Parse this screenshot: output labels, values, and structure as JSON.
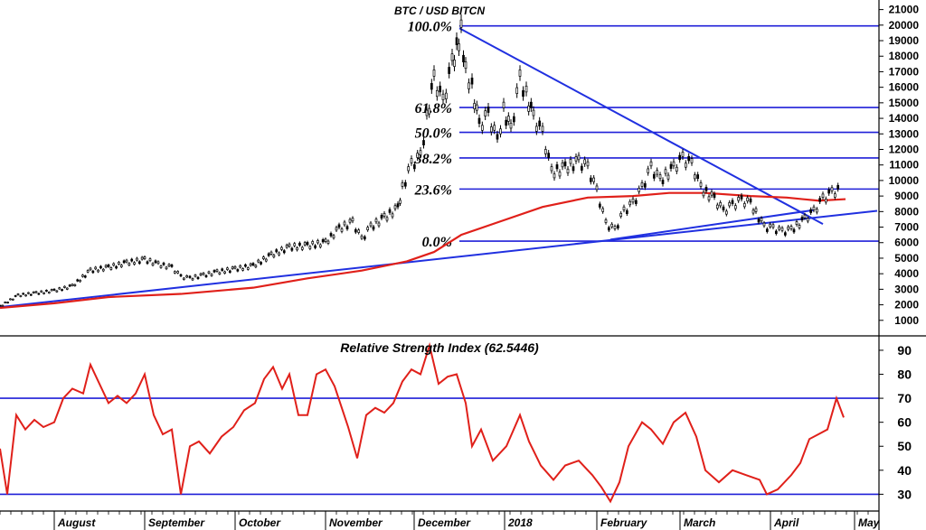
{
  "chart_data": [
    {
      "type": "candlestick",
      "title": "BTC / USD BITCN",
      "y_ticks": [
        1000,
        2000,
        3000,
        4000,
        5000,
        6000,
        7000,
        8000,
        9000,
        10000,
        11000,
        12000,
        13000,
        14000,
        15000,
        16000,
        17000,
        18000,
        19000,
        20000,
        21000
      ],
      "ylim": [
        0,
        21500
      ],
      "x_labels": [
        "August",
        "September",
        "October",
        "November",
        "December",
        "2018",
        "February",
        "March",
        "April",
        "May"
      ],
      "fib_levels": [
        {
          "label": "100.0%",
          "value": 19950
        },
        {
          "label": "61.8%",
          "value": 14700
        },
        {
          "label": "50.0%",
          "value": 13100
        },
        {
          "label": "38.2%",
          "value": 11450
        },
        {
          "label": "23.6%",
          "value": 9450
        },
        {
          "label": "0.0%",
          "value": 6100
        }
      ],
      "price_series": [
        [
          0,
          1900
        ],
        [
          20,
          2600
        ],
        [
          40,
          2750
        ],
        [
          60,
          2900
        ],
        [
          80,
          3200
        ],
        [
          100,
          4200
        ],
        [
          120,
          4400
        ],
        [
          140,
          4700
        ],
        [
          160,
          4900
        ],
        [
          175,
          4600
        ],
        [
          190,
          4400
        ],
        [
          200,
          3800
        ],
        [
          210,
          3700
        ],
        [
          225,
          3900
        ],
        [
          240,
          4100
        ],
        [
          260,
          4300
        ],
        [
          280,
          4500
        ],
        [
          300,
          5200
        ],
        [
          320,
          5700
        ],
        [
          340,
          5800
        ],
        [
          360,
          6000
        ],
        [
          375,
          6900
        ],
        [
          390,
          7300
        ],
        [
          400,
          6200
        ],
        [
          410,
          7000
        ],
        [
          425,
          7600
        ],
        [
          440,
          8200
        ],
        [
          445,
          9500
        ],
        [
          455,
          11000
        ],
        [
          465,
          11500
        ],
        [
          472,
          14000
        ],
        [
          480,
          16500
        ],
        [
          490,
          15000
        ],
        [
          500,
          17500
        ],
        [
          505,
          18500
        ],
        [
          510,
          19600
        ],
        [
          515,
          17000
        ],
        [
          522,
          16000
        ],
        [
          530,
          13500
        ],
        [
          540,
          14200
        ],
        [
          550,
          12500
        ],
        [
          557,
          14500
        ],
        [
          565,
          13200
        ],
        [
          575,
          16500
        ],
        [
          582,
          15500
        ],
        [
          590,
          14000
        ],
        [
          600,
          13000
        ],
        [
          610,
          10500
        ],
        [
          625,
          10800
        ],
        [
          640,
          11200
        ],
        [
          650,
          10800
        ],
        [
          660,
          9300
        ],
        [
          670,
          7200
        ],
        [
          680,
          6800
        ],
        [
          690,
          8000
        ],
        [
          700,
          8500
        ],
        [
          710,
          9500
        ],
        [
          720,
          10800
        ],
        [
          730,
          10000
        ],
        [
          745,
          10800
        ],
        [
          755,
          11400
        ],
        [
          765,
          11000
        ],
        [
          775,
          9500
        ],
        [
          790,
          8800
        ],
        [
          800,
          8000
        ],
        [
          810,
          8400
        ],
        [
          820,
          8700
        ],
        [
          830,
          8500
        ],
        [
          845,
          7000
        ],
        [
          855,
          6900
        ],
        [
          865,
          6700
        ],
        [
          875,
          6800
        ],
        [
          890,
          7500
        ],
        [
          900,
          8000
        ],
        [
          910,
          8800
        ],
        [
          920,
          9200
        ],
        [
          930,
          9400
        ]
      ],
      "ma_series": [
        [
          0,
          1800
        ],
        [
          60,
          2100
        ],
        [
          120,
          2500
        ],
        [
          200,
          2700
        ],
        [
          280,
          3100
        ],
        [
          340,
          3700
        ],
        [
          400,
          4200
        ],
        [
          450,
          4800
        ],
        [
          480,
          5400
        ],
        [
          510,
          6500
        ],
        [
          550,
          7300
        ],
        [
          600,
          8300
        ],
        [
          650,
          8900
        ],
        [
          700,
          9000
        ],
        [
          740,
          9200
        ],
        [
          780,
          9200
        ],
        [
          830,
          9000
        ],
        [
          870,
          8900
        ],
        [
          905,
          8700
        ],
        [
          935,
          8800
        ]
      ],
      "trend_lines": [
        {
          "name": "lower-support",
          "from": [
            0,
            1850
          ],
          "to": [
            970,
            8050
          ]
        },
        {
          "name": "descending-resistance",
          "from": [
            508,
            19800
          ],
          "to": [
            910,
            7200
          ]
        },
        {
          "name": "sideways-support",
          "from": [
            675,
            6200
          ],
          "to": [
            900,
            8100
          ]
        }
      ]
    },
    {
      "type": "line",
      "title": "Relative Strength Index (62.5446)",
      "y_ticks": [
        30,
        40,
        50,
        60,
        70,
        80,
        90
      ],
      "ylim": [
        23,
        96
      ],
      "levels": [
        70,
        30
      ],
      "series": [
        [
          0,
          49
        ],
        [
          8,
          30
        ],
        [
          18,
          63
        ],
        [
          28,
          57
        ],
        [
          38,
          61
        ],
        [
          48,
          58
        ],
        [
          60,
          60
        ],
        [
          70,
          70
        ],
        [
          80,
          74
        ],
        [
          92,
          72
        ],
        [
          100,
          84
        ],
        [
          110,
          76
        ],
        [
          120,
          68
        ],
        [
          130,
          71
        ],
        [
          140,
          68
        ],
        [
          150,
          72
        ],
        [
          160,
          80
        ],
        [
          170,
          63
        ],
        [
          180,
          55
        ],
        [
          190,
          57
        ],
        [
          200,
          30
        ],
        [
          210,
          50
        ],
        [
          220,
          52
        ],
        [
          232,
          47
        ],
        [
          245,
          54
        ],
        [
          258,
          58
        ],
        [
          270,
          65
        ],
        [
          282,
          68
        ],
        [
          292,
          78
        ],
        [
          302,
          83
        ],
        [
          312,
          74
        ],
        [
          320,
          80
        ],
        [
          330,
          63
        ],
        [
          340,
          63
        ],
        [
          350,
          80
        ],
        [
          360,
          82
        ],
        [
          370,
          75
        ],
        [
          385,
          58
        ],
        [
          395,
          45
        ],
        [
          405,
          63
        ],
        [
          415,
          66
        ],
        [
          425,
          64
        ],
        [
          435,
          68
        ],
        [
          445,
          77
        ],
        [
          455,
          82
        ],
        [
          465,
          80
        ],
        [
          475,
          92
        ],
        [
          485,
          76
        ],
        [
          495,
          79
        ],
        [
          505,
          80
        ],
        [
          515,
          68
        ],
        [
          522,
          50
        ],
        [
          532,
          57
        ],
        [
          545,
          44
        ],
        [
          560,
          50
        ],
        [
          575,
          63
        ],
        [
          585,
          52
        ],
        [
          598,
          42
        ],
        [
          612,
          36
        ],
        [
          625,
          42
        ],
        [
          640,
          44
        ],
        [
          655,
          38
        ],
        [
          665,
          33
        ],
        [
          675,
          27
        ],
        [
          685,
          35
        ],
        [
          695,
          50
        ],
        [
          710,
          60
        ],
        [
          720,
          57
        ],
        [
          733,
          51
        ],
        [
          745,
          60
        ],
        [
          758,
          64
        ],
        [
          770,
          54
        ],
        [
          780,
          40
        ],
        [
          795,
          35
        ],
        [
          810,
          40
        ],
        [
          825,
          38
        ],
        [
          840,
          36
        ],
        [
          848,
          30
        ],
        [
          860,
          32
        ],
        [
          875,
          38
        ],
        [
          885,
          43
        ],
        [
          895,
          53
        ],
        [
          905,
          55
        ],
        [
          915,
          57
        ],
        [
          925,
          70
        ],
        [
          933,
          62
        ]
      ],
      "x_labels": [
        "August",
        "September",
        "October",
        "November",
        "December",
        "2018",
        "February",
        "March",
        "April",
        "May"
      ]
    }
  ]
}
